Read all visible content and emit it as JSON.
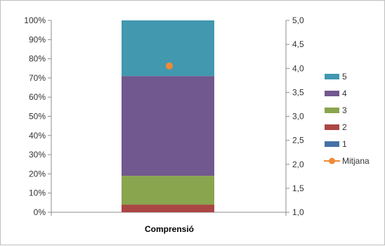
{
  "chart_data": {
    "type": "bar",
    "stacked": true,
    "normalized_percent": true,
    "categories": [
      "Comprensió"
    ],
    "series": [
      {
        "name": "1",
        "values": [
          0
        ],
        "color": "#4572a7"
      },
      {
        "name": "2",
        "values": [
          4
        ],
        "color": "#aa4643"
      },
      {
        "name": "3",
        "values": [
          15
        ],
        "color": "#89a54e"
      },
      {
        "name": "4",
        "values": [
          52
        ],
        "color": "#71588f"
      },
      {
        "name": "5",
        "values": [
          29
        ],
        "color": "#4198af"
      }
    ],
    "line_series": {
      "name": "Mitjana",
      "values": [
        4.05
      ],
      "color": "#f08a34",
      "axis": "secondary"
    },
    "primary_axis": {
      "ylim": [
        0,
        100
      ],
      "ticks": [
        "0%",
        "10%",
        "20%",
        "30%",
        "40%",
        "50%",
        "60%",
        "70%",
        "80%",
        "90%",
        "100%"
      ]
    },
    "secondary_axis": {
      "ylim": [
        1.0,
        5.0
      ],
      "ticks": [
        "1,0",
        "1,5",
        "2,0",
        "2,5",
        "3,0",
        "3,5",
        "4,0",
        "4,5",
        "5,0"
      ]
    },
    "legend": {
      "placement": "right",
      "items": [
        {
          "label": "5",
          "kind": "box",
          "color": "#4198af"
        },
        {
          "label": "4",
          "kind": "box",
          "color": "#71588f"
        },
        {
          "label": "3",
          "kind": "box",
          "color": "#89a54e"
        },
        {
          "label": "2",
          "kind": "box",
          "color": "#aa4643"
        },
        {
          "label": "1",
          "kind": "box",
          "color": "#4572a7"
        },
        {
          "label": "Mitjana",
          "kind": "line-marker",
          "color": "#f08a34"
        }
      ]
    },
    "grid": false,
    "title": "",
    "xlabel": "",
    "ylabel": ""
  }
}
